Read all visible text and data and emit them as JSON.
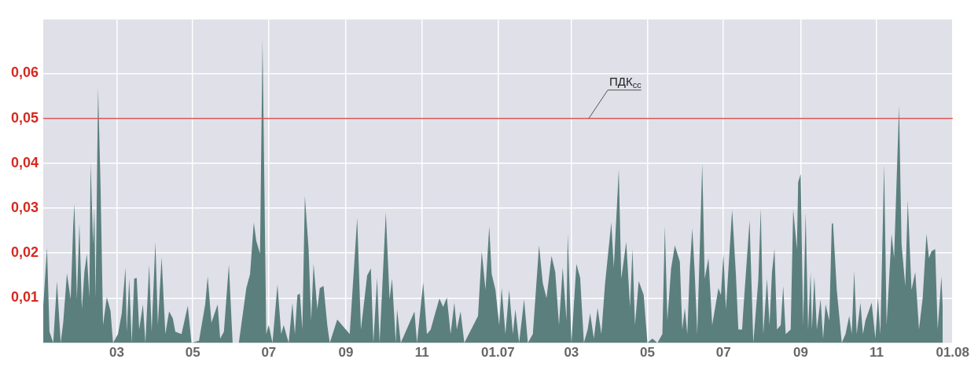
{
  "chart_data": {
    "type": "area",
    "x": [
      "2006-01-01",
      "2006-01-04",
      "2006-01-06",
      "2006-01-09",
      "2006-01-12",
      "2006-01-15",
      "2006-01-17",
      "2006-01-20",
      "2006-01-23",
      "2006-01-25",
      "2006-01-26",
      "2006-01-28",
      "2006-01-30",
      "2006-02-01",
      "2006-02-03",
      "2006-02-05",
      "2006-02-07",
      "2006-02-08",
      "2006-02-10",
      "2006-02-11",
      "2006-02-12",
      "2006-02-14",
      "2006-02-16",
      "2006-02-18",
      "2006-02-21",
      "2006-02-24",
      "2006-02-26",
      "2006-03-02",
      "2006-03-05",
      "2006-03-08",
      "2006-03-09",
      "2006-03-11",
      "2006-03-13",
      "2006-03-15",
      "2006-03-17",
      "2006-03-19",
      "2006-03-22",
      "2006-03-24",
      "2006-03-27",
      "2006-03-29",
      "2006-04-01",
      "2006-04-03",
      "2006-04-06",
      "2006-04-09",
      "2006-04-12",
      "2006-04-15",
      "2006-04-17",
      "2006-04-22",
      "2006-04-27",
      "2006-04-30",
      "2006-05-06",
      "2006-05-11",
      "2006-05-13",
      "2006-05-16",
      "2006-05-21",
      "2006-05-23",
      "2006-05-26",
      "2006-05-30",
      "2006-06-02",
      "2006-06-07",
      "2006-06-13",
      "2006-06-16",
      "2006-06-19",
      "2006-06-21",
      "2006-06-24",
      "2006-06-26",
      "2006-06-29",
      "2006-07-01",
      "2006-07-04",
      "2006-07-08",
      "2006-07-11",
      "2006-07-13",
      "2006-07-17",
      "2006-07-20",
      "2006-07-22",
      "2006-07-24",
      "2006-07-26",
      "2006-07-28",
      "2006-07-30",
      "2006-08-02",
      "2006-08-04",
      "2006-08-06",
      "2006-08-09",
      "2006-08-11",
      "2006-08-14",
      "2006-08-17",
      "2006-08-19",
      "2006-08-25",
      "2006-09-04",
      "2006-09-10",
      "2006-09-13",
      "2006-09-18",
      "2006-09-21",
      "2006-09-23",
      "2006-09-26",
      "2006-09-28",
      "2006-10-03",
      "2006-10-06",
      "2006-10-08",
      "2006-10-11",
      "2006-10-12",
      "2006-10-15",
      "2006-10-26",
      "2006-10-28",
      "2006-11-02",
      "2006-11-05",
      "2006-11-08",
      "2006-11-11",
      "2006-11-15",
      "2006-11-18",
      "2006-11-21",
      "2006-11-24",
      "2006-11-27",
      "2006-11-29",
      "2006-12-02",
      "2006-12-05",
      "2006-12-16",
      "2006-12-19",
      "2006-12-22",
      "2006-12-25",
      "2006-12-27",
      "2006-12-30",
      "2007-01-02",
      "2007-01-04",
      "2007-01-07",
      "2007-01-10",
      "2007-01-13",
      "2007-01-15",
      "2007-01-18",
      "2007-01-22",
      "2007-01-25",
      "2007-01-29",
      "2007-02-03",
      "2007-02-06",
      "2007-02-09",
      "2007-02-13",
      "2007-02-16",
      "2007-02-19",
      "2007-02-22",
      "2007-02-25",
      "2007-02-26",
      "2007-03-01",
      "2007-03-05",
      "2007-03-08",
      "2007-03-11",
      "2007-03-14",
      "2007-03-16",
      "2007-03-19",
      "2007-03-22",
      "2007-03-25",
      "2007-03-28",
      "2007-04-02",
      "2007-04-04",
      "2007-04-08",
      "2007-04-10",
      "2007-04-14",
      "2007-04-17",
      "2007-04-19",
      "2007-04-21",
      "2007-04-24",
      "2007-04-28",
      "2007-05-01",
      "2007-05-05",
      "2007-05-09",
      "2007-05-13",
      "2007-05-15",
      "2007-05-17",
      "2007-05-20",
      "2007-05-23",
      "2007-05-27",
      "2007-05-29",
      "2007-05-31",
      "2007-06-02",
      "2007-06-04",
      "2007-06-06",
      "2007-06-08",
      "2007-06-10",
      "2007-06-14",
      "2007-06-16",
      "2007-06-19",
      "2007-06-22",
      "2007-06-27",
      "2007-06-29",
      "2007-07-01",
      "2007-07-03",
      "2007-07-05",
      "2007-07-08",
      "2007-07-11",
      "2007-07-13",
      "2007-07-16",
      "2007-07-17",
      "2007-07-22",
      "2007-07-25",
      "2007-07-29",
      "2007-07-31",
      "2007-08-02",
      "2007-08-05",
      "2007-08-07",
      "2007-08-09",
      "2007-08-11",
      "2007-08-13",
      "2007-08-16",
      "2007-08-18",
      "2007-08-20",
      "2007-08-24",
      "2007-08-26",
      "2007-08-29",
      "2007-08-30",
      "2007-09-01",
      "2007-09-03",
      "2007-09-05",
      "2007-09-07",
      "2007-09-09",
      "2007-09-10",
      "2007-09-12",
      "2007-09-14",
      "2007-09-17",
      "2007-09-19",
      "2007-09-21",
      "2007-09-24",
      "2007-09-26",
      "2007-09-27",
      "2007-09-30",
      "2007-10-02",
      "2007-10-04",
      "2007-10-07",
      "2007-10-10",
      "2007-10-12",
      "2007-10-14",
      "2007-10-16",
      "2007-10-19",
      "2007-10-21",
      "2007-10-23",
      "2007-10-28",
      "2007-10-31",
      "2007-11-02",
      "2007-11-04",
      "2007-11-07",
      "2007-11-09",
      "2007-11-13",
      "2007-11-15",
      "2007-11-19",
      "2007-11-21",
      "2007-11-24",
      "2007-11-26",
      "2007-11-29",
      "2007-12-02",
      "2007-12-05",
      "2007-12-08",
      "2007-12-11",
      "2007-12-13",
      "2007-12-15",
      "2007-12-18",
      "2007-12-20",
      "2007-12-23",
      "2007-12-24"
    ],
    "values": [
      0.0083,
      0.0212,
      0.0025,
      0,
      0.0137,
      0,
      0.0045,
      0.0155,
      0.0097,
      0.0258,
      0.031,
      0.0097,
      0.0266,
      0.0075,
      0.0158,
      0.0198,
      0.0102,
      0.0402,
      0.022,
      0.0302,
      0.01,
      0.0568,
      0.0348,
      0.004,
      0.0102,
      0.0071,
      0,
      0.002,
      0.0066,
      0.0168,
      0.0025,
      0.0143,
      0,
      0.0143,
      0.0145,
      0.003,
      0.0086,
      0,
      0.0174,
      0.0025,
      0.0225,
      0.004,
      0.0191,
      0.002,
      0.007,
      0.0055,
      0.0025,
      0.002,
      0.0083,
      0,
      0.0005,
      0.0086,
      0.0148,
      0.0045,
      0.0086,
      0.001,
      0.0025,
      0.0174,
      0,
      0,
      0.0122,
      0.0153,
      0.0268,
      0.0227,
      0.0199,
      0.0676,
      0.002,
      0.004,
      0,
      0.013,
      0.002,
      0.004,
      0,
      0.0089,
      0.002,
      0.0107,
      0.011,
      0.003,
      0.0327,
      0.0209,
      0.005,
      0.0176,
      0.0075,
      0.0122,
      0.0127,
      0.004,
      0,
      0.0052,
      0.002,
      0.0278,
      0.003,
      0.015,
      0.0166,
      0,
      0.0145,
      0,
      0.0291,
      0.0097,
      0.0143,
      0,
      0.0075,
      0,
      0.007,
      0,
      0.0135,
      0.002,
      0.003,
      0.006,
      0.0099,
      0.008,
      0.0101,
      0.002,
      0.009,
      0.003,
      0.007,
      0,
      0.006,
      0.0204,
      0.0118,
      0.026,
      0.0153,
      0.0118,
      0.004,
      0.0122,
      0.002,
      0.0118,
      0.002,
      0.0075,
      0,
      0.0097,
      0,
      0.002,
      0.0217,
      0.0133,
      0.01,
      0.0194,
      0.0158,
      0.004,
      0.0168,
      0.005,
      0.0243,
      0,
      0.0176,
      0.0145,
      0,
      0.003,
      0.0066,
      0.001,
      0.0078,
      0.002,
      0.0133,
      0.0268,
      0.0168,
      0.0386,
      0.0143,
      0.0225,
      0.008,
      0.0209,
      0.004,
      0.0138,
      0.0107,
      0,
      0.001,
      0,
      0.002,
      0.026,
      0.005,
      0.0166,
      0.0217,
      0.0181,
      0.003,
      0.0078,
      0.002,
      0.0166,
      0.0255,
      0.0154,
      0.002,
      0.0399,
      0.0143,
      0.0189,
      0.004,
      0.0122,
      0.0107,
      0.0199,
      0.0075,
      0.0163,
      0.0297,
      0.0153,
      0.003,
      0.003,
      0.0075,
      0.0273,
      0,
      0.014,
      0.0299,
      0.002,
      0.0143,
      0.004,
      0.0158,
      0.0209,
      0.003,
      0.004,
      0.0127,
      0.002,
      0.003,
      0.0297,
      0.0209,
      0.0358,
      0.0376,
      0.004,
      0.0291,
      0.003,
      0.0158,
      0.003,
      0.0148,
      0.003,
      0.0097,
      0.001,
      0.0086,
      0.005,
      0.0266,
      0.0266,
      0.0118,
      0.006,
      0,
      0.002,
      0.006,
      0.002,
      0.016,
      0.002,
      0.009,
      0.002,
      0.005,
      0.009,
      0.001,
      0.0101,
      0.002,
      0.0397,
      0.004,
      0.0243,
      0.0189,
      0.0528,
      0.022,
      0.0127,
      0.0317,
      0.0118,
      0.0158,
      0.003,
      0.0101,
      0.0243,
      0.0189,
      0.0204,
      0.0209,
      0.003,
      0.0148,
      0.008
    ],
    "color": "#5b7f7d",
    "xlim": [
      "2006-01-01",
      "2008-01-01"
    ],
    "xticks": [
      {
        "value": "2006-03",
        "label": "03"
      },
      {
        "value": "2006-05",
        "label": "05"
      },
      {
        "value": "2006-07",
        "label": "07"
      },
      {
        "value": "2006-09",
        "label": "09"
      },
      {
        "value": "2006-11",
        "label": "11"
      },
      {
        "value": "2007-01",
        "label": "01.07"
      },
      {
        "value": "2007-03",
        "label": "03"
      },
      {
        "value": "2007-05",
        "label": "05"
      },
      {
        "value": "2007-07",
        "label": "07"
      },
      {
        "value": "2007-09",
        "label": "09"
      },
      {
        "value": "2007-11",
        "label": "11"
      },
      {
        "value": "2008-01",
        "label": "01.08"
      }
    ],
    "ylim": [
      0,
      0.072
    ],
    "yticks": [
      {
        "value": 0.01,
        "label": "0,01"
      },
      {
        "value": 0.02,
        "label": "0,02"
      },
      {
        "value": 0.03,
        "label": "0,03"
      },
      {
        "value": 0.04,
        "label": "0,04"
      },
      {
        "value": 0.05,
        "label": "0,05"
      },
      {
        "value": 0.06,
        "label": "0,06"
      }
    ],
    "ref_lines": [
      {
        "axis": "y",
        "value": 0.05,
        "label": "ПДК$_{сс}$",
        "color": "#d9534f"
      }
    ],
    "grid": true,
    "legend": false
  }
}
